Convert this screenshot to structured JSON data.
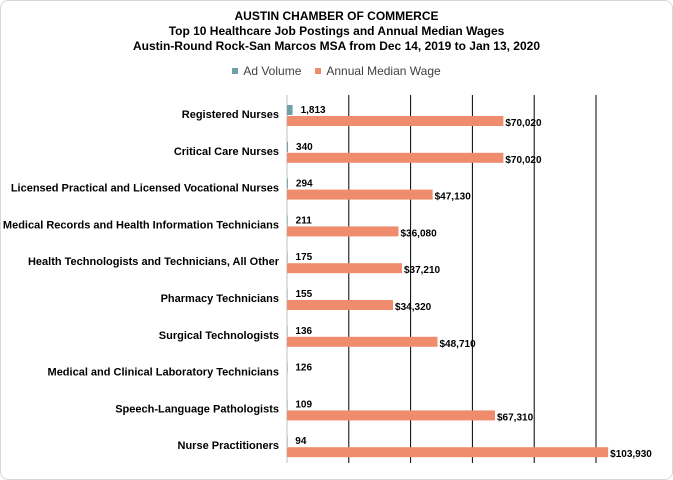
{
  "titles": {
    "line1": "AUSTIN CHAMBER  OF COMMERCE",
    "line2": "Top 10 Healthcare Job Postings and Annual Median Wages",
    "line3": "Austin-Round  Rock-San Marcos MSA from Dec 14, 2019 to Jan 13, 2020"
  },
  "colors": {
    "ad_volume": "#6f9fa8",
    "median_wage": "#f08c6e",
    "gridline": "#000000",
    "axis": "#bfbfbf"
  },
  "chart_data": {
    "type": "bar",
    "orientation": "horizontal",
    "title": "AUSTIN CHAMBER  OF COMMERCE / Top 10 Healthcare Job Postings and Annual Median Wages / Austin-Round  Rock-San Marcos MSA from Dec 14, 2019 to Jan 13, 2020",
    "legend_position": "top",
    "grid": true,
    "xlim": [
      0,
      110000
    ],
    "gridline_values": [
      20000,
      40000,
      60000,
      80000,
      100000
    ],
    "categories": [
      "Registered Nurses",
      "Critical Care Nurses",
      "Licensed Practical and Licensed Vocational Nurses",
      "Medical Records and Health Information Technicians",
      "Health Technologists and Technicians, All Other",
      "Pharmacy Technicians",
      "Surgical Technologists",
      "Medical and Clinical Laboratory Technicians",
      "Speech-Language Pathologists",
      "Nurse Practitioners"
    ],
    "series": [
      {
        "name": "Ad Volume",
        "values": [
          1813,
          340,
          294,
          211,
          175,
          155,
          136,
          126,
          109,
          94
        ],
        "labels": [
          "1,813",
          "340",
          "294",
          "211",
          "175",
          "155",
          "136",
          "126",
          "109",
          "94"
        ]
      },
      {
        "name": "Annual Median Wage",
        "values": [
          70020,
          70020,
          47130,
          36080,
          37210,
          34320,
          48710,
          null,
          67310,
          103930
        ],
        "labels": [
          "$70,020",
          "$70,020",
          "$47,130",
          "$36,080",
          "$37,210",
          "$34,320",
          "$48,710",
          "",
          "$67,310",
          "$103,930"
        ]
      }
    ]
  }
}
